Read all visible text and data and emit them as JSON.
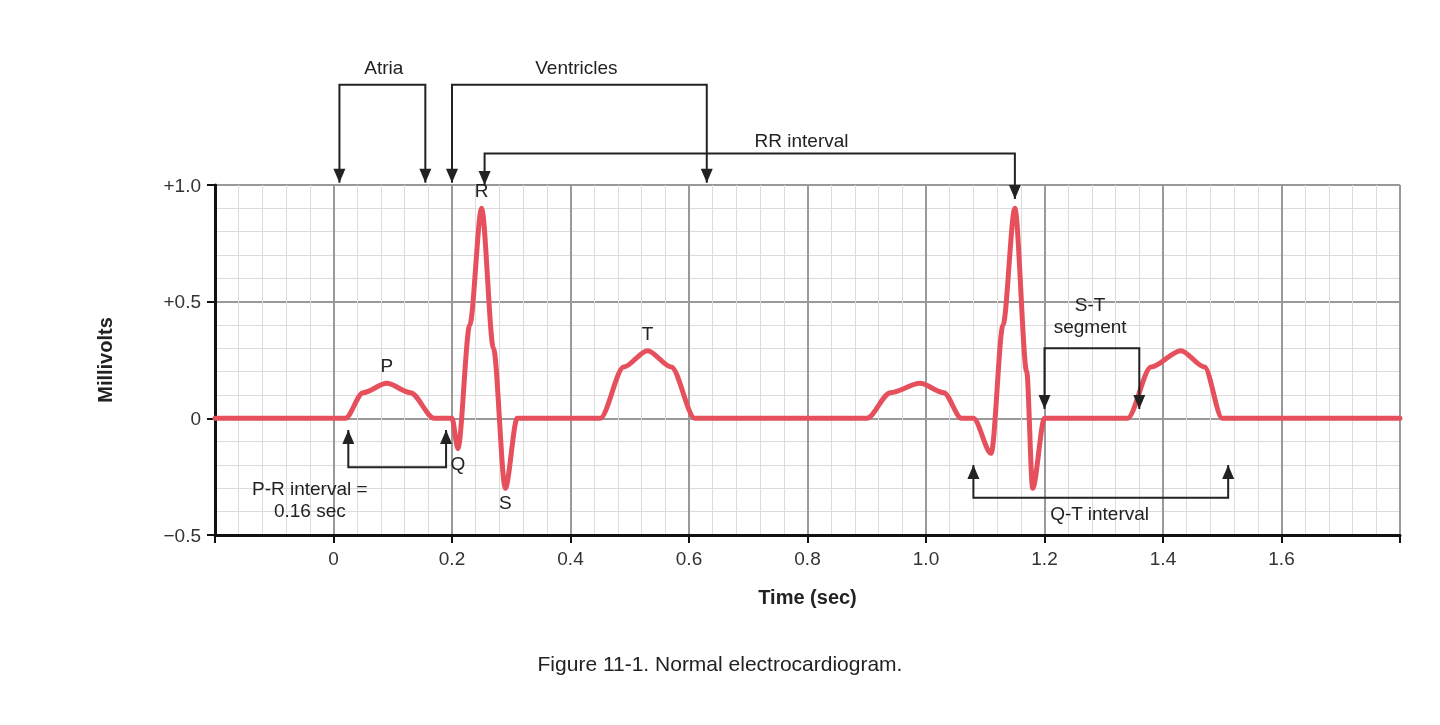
{
  "chart_data": {
    "type": "line",
    "xlabel": "Time (sec)",
    "ylabel": "Millivolts",
    "x": [
      -0.2,
      0.02,
      0.05,
      0.09,
      0.13,
      0.17,
      0.2,
      0.21,
      0.23,
      0.25,
      0.27,
      0.29,
      0.31,
      0.45,
      0.49,
      0.53,
      0.57,
      0.61,
      0.9,
      0.94,
      0.99,
      1.03,
      1.06,
      1.08,
      1.11,
      1.13,
      1.15,
      1.17,
      1.18,
      1.2,
      1.34,
      1.38,
      1.43,
      1.47,
      1.5,
      1.8
    ],
    "series": [
      {
        "color": "#e5505c",
        "values": [
          0,
          0,
          0.11,
          0.15,
          0.11,
          0,
          0,
          -0.13,
          0.4,
          0.9,
          0.3,
          -0.3,
          0,
          0,
          0.22,
          0.29,
          0.22,
          0,
          0,
          0.11,
          0.15,
          0.11,
          0,
          0,
          -0.15,
          0.4,
          0.9,
          0.2,
          -0.3,
          0,
          0,
          0.22,
          0.29,
          0.22,
          0,
          0
        ]
      }
    ],
    "xlim": [
      -0.2,
      1.8
    ],
    "ylim": [
      -0.5,
      1.0
    ],
    "xticks": [
      {
        "value": -0.2,
        "label": null
      },
      0,
      0.2,
      0.4,
      0.6,
      0.8,
      {
        "value": 1.0,
        "label": "1.0"
      },
      1.2,
      1.4,
      1.6,
      {
        "value": 1.8,
        "label": null
      }
    ],
    "yticks": [
      {
        "value": -0.5,
        "label": "−0.5"
      },
      0,
      {
        "value": 0.5,
        "label": "+0.5"
      },
      {
        "value": 1.0,
        "label": "+1.0"
      }
    ],
    "grid": true,
    "marker": "none",
    "line_style": "solid",
    "annotations": [
      "Atria",
      "Ventricles",
      "RR interval",
      {
        "text": "P",
        "x": 0.09,
        "y": 0.15
      },
      {
        "text": "Q",
        "x": 0.21,
        "y": -0.13
      },
      {
        "text": "R",
        "x": 0.25,
        "y": 0.9
      },
      {
        "text": "S",
        "x": 0.29,
        "y": -0.3
      },
      {
        "text": "T",
        "x": 0.53,
        "y": 0.29
      },
      "P-R interval = 0.16 sec",
      "S-T segment",
      "Q-T interval",
      "Figure 11-1. Normal electrocardiogram."
    ]
  }
}
